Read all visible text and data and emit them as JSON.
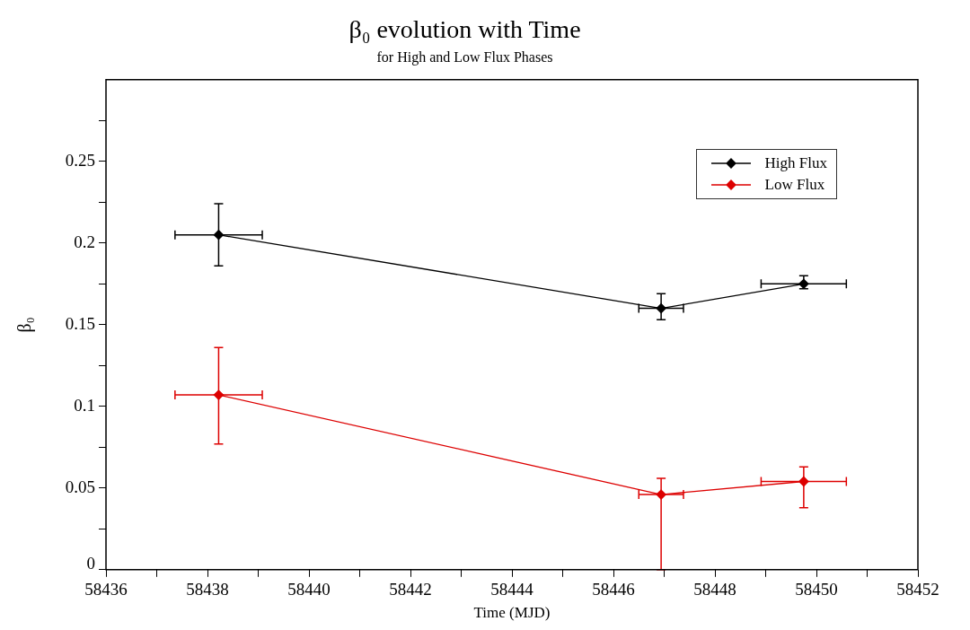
{
  "chart_data": {
    "type": "line",
    "title": "β₀ evolution with Time",
    "subtitle": "for High and Low Flux Phases",
    "xlabel": "Time (MJD)",
    "ylabel": "β₀",
    "xlim": [
      58436,
      58452
    ],
    "xticks": [
      58436,
      {
        "value": 58437,
        "label": null
      },
      58438,
      {
        "value": 58439,
        "label": null
      },
      58440,
      {
        "value": 58441,
        "label": null
      },
      58442,
      {
        "value": 58443,
        "label": null
      },
      58444,
      {
        "value": 58445,
        "label": null
      },
      58446,
      {
        "value": 58447,
        "label": null
      },
      58448,
      {
        "value": 58449,
        "label": null
      },
      58450,
      {
        "value": 58451,
        "label": null
      },
      58452
    ],
    "ylim": [
      0,
      0.3
    ],
    "yticks": [
      0,
      {
        "value": 0.025,
        "label": null
      },
      0.05,
      {
        "value": 0.075,
        "label": null
      },
      0.1,
      {
        "value": 0.125,
        "label": null
      },
      0.15,
      {
        "value": 0.175,
        "label": null
      },
      0.2,
      {
        "value": 0.225,
        "label": null
      },
      0.25,
      {
        "value": 0.275,
        "label": null
      }
    ],
    "grid": false,
    "legend": "top right",
    "marker": "diamond",
    "line_style": "solid",
    "series": [
      {
        "name": "High Flux",
        "color": "#000000",
        "x": [
          58438.22,
          58446.94,
          58449.75
        ],
        "values": [
          0.205,
          0.16,
          0.175
        ],
        "errors": [
          [
            0.186,
            0.224
          ],
          [
            0.153,
            0.169
          ],
          [
            0.172,
            0.18
          ]
        ],
        "xerrors": [
          0.86,
          0.44,
          0.84
        ]
      },
      {
        "name": "Low Flux",
        "color": "#dd0000",
        "x": [
          58438.22,
          58446.94,
          58449.75
        ],
        "values": [
          0.107,
          0.046,
          0.054
        ],
        "errors": [
          [
            0.077,
            0.136
          ],
          [
            0,
            0.056
          ],
          [
            0.038,
            0.063
          ]
        ],
        "xerrors": [
          0.86,
          0.44,
          0.84
        ]
      }
    ]
  }
}
